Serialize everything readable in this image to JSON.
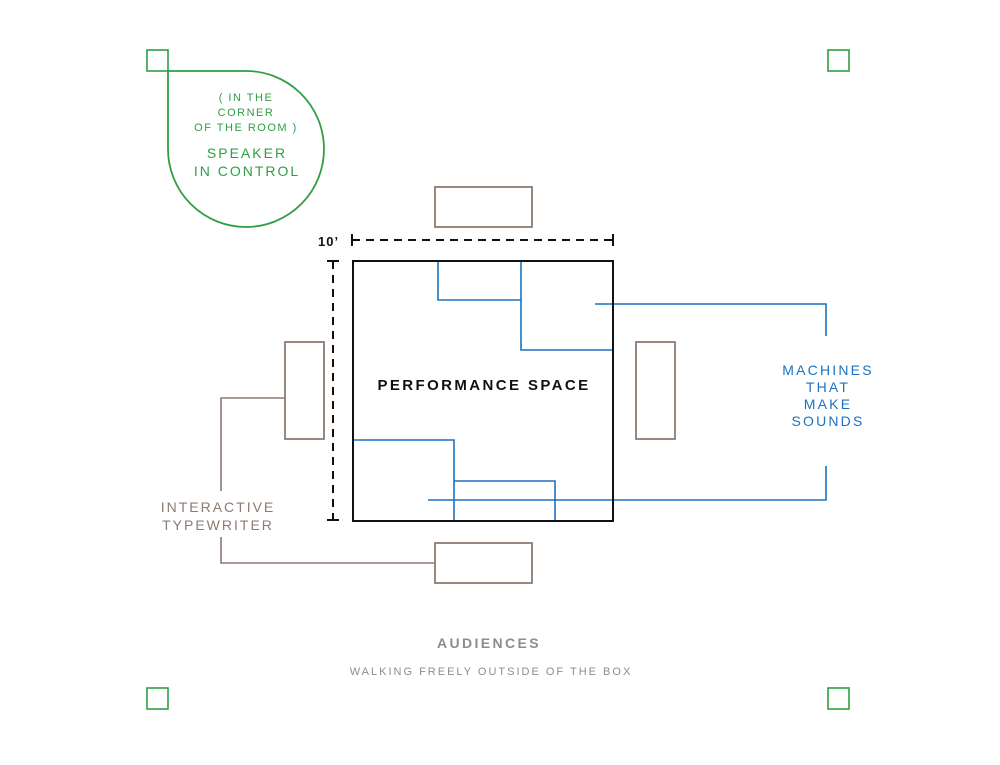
{
  "speaker": {
    "note_lines": [
      "( IN THE",
      "CORNER",
      "OF THE ROOM )"
    ],
    "label_lines": [
      "SPEAKER",
      "IN CONTROL"
    ]
  },
  "dimension_label": "10’",
  "performance_label": "PERFORMANCE SPACE",
  "machines_label_lines": [
    "MACHINES",
    "THAT",
    "MAKE",
    "SOUNDS"
  ],
  "typewriter_label_lines": [
    "INTERACTIVE",
    "TYPEWRITER"
  ],
  "audiences": {
    "title": "AUDIENCES",
    "subtitle": "WALKING FREELY OUTSIDE OF THE BOX"
  },
  "colors": {
    "speaker": "#2f9e44",
    "machines": "#1b72c0",
    "typewriter": "#8c7b72",
    "stage": "#111111",
    "audience_text": "#8c8c8c"
  }
}
